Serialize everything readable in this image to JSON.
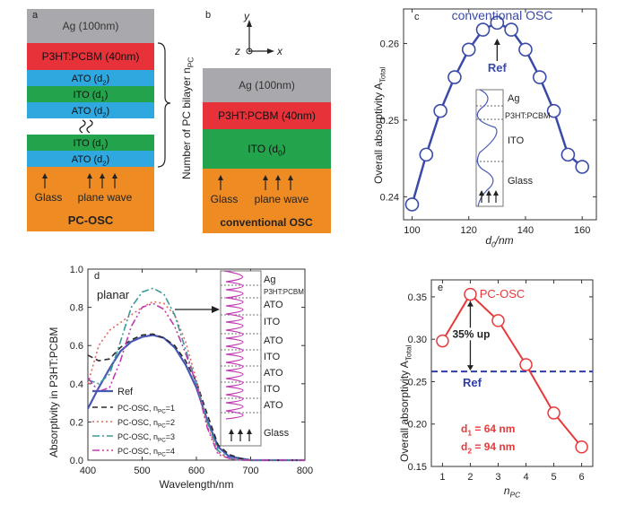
{
  "panels": {
    "a": {
      "letter": "a",
      "layers": [
        "Ag (100nm)",
        "P3HT:PCBM (40nm)",
        "ATO (d",
        "ITO (d",
        "ATO (d",
        "ITO (d",
        "ATO (d"
      ],
      "layer_subs": [
        "",
        "",
        "2",
        "1",
        "2",
        "1",
        "2"
      ],
      "layer_colors": [
        "#a9a9ad",
        "#e8323a",
        "#2ea8df",
        "#23a34b",
        "#2ea8df",
        "#23a34b",
        "#2ea8df",
        "#ee8b22"
      ],
      "glass": "Glass",
      "wave": "plane wave",
      "device": "PC-OSC",
      "brace_label": "Number of PC bilayer n",
      "brace_sub": "PC"
    },
    "b": {
      "letter": "b",
      "axis_y": "y",
      "axis_z": "z",
      "axis_x": "x",
      "layers": [
        "Ag (100nm)",
        "P3HT:PCBM (40nm)",
        "ITO (d"
      ],
      "layer_subs": [
        "",
        "",
        "0"
      ],
      "glass": "Glass",
      "wave": "plane wave",
      "device": "conventional OSC"
    }
  },
  "chart_data": [
    {
      "panel": "c",
      "type": "line",
      "title": "conventional OSC",
      "xlabel": "d",
      "xlabel_sub": "0",
      "xlabel_unit": "/nm",
      "ylabel": "Overall absorptivity A",
      "ylabel_sub": "Total",
      "xlim": [
        97,
        165
      ],
      "ylim": [
        0.237,
        0.2645
      ],
      "xticks": [
        100,
        120,
        140,
        160
      ],
      "xtick_labels": [
        "100",
        "120",
        "140",
        "160"
      ],
      "yticks": [
        0.24,
        0.25,
        0.26
      ],
      "ytick_labels": [
        "0.24",
        "0.25",
        "0.26"
      ],
      "x": [
        100,
        105,
        110,
        115,
        120,
        125,
        130,
        135,
        140,
        145,
        150,
        155,
        160
      ],
      "y": [
        0.239,
        0.2455,
        0.2512,
        0.2556,
        0.2592,
        0.2618,
        0.2627,
        0.2618,
        0.2592,
        0.2556,
        0.2512,
        0.2455,
        0.2439
      ],
      "color": "#3a4aa8",
      "annotation": "Ref",
      "annotation_x": 130,
      "inset_labels": [
        "Ag",
        "P3HT:PCBM",
        "ITO",
        "Glass"
      ]
    },
    {
      "panel": "d",
      "type": "line",
      "xlabel": "Wavelength/nm",
      "ylabel": "Absorptivity in P3HT:PCBM",
      "xlim": [
        400,
        800
      ],
      "ylim": [
        0.0,
        1.0
      ],
      "xticks": [
        400,
        500,
        600,
        700,
        800
      ],
      "xtick_labels": [
        "400",
        "500",
        "600",
        "700",
        "800"
      ],
      "yticks": [
        0.0,
        0.2,
        0.4,
        0.6,
        0.8,
        1.0
      ],
      "ytick_labels": [
        "0.0",
        "0.2",
        "0.4",
        "0.6",
        "0.8",
        "1.0"
      ],
      "x": [
        400,
        420,
        440,
        460,
        480,
        500,
        520,
        540,
        560,
        580,
        600,
        620,
        640,
        660,
        680,
        700,
        750,
        800
      ],
      "series": [
        {
          "name": "Ref",
          "color": "#4657b4",
          "dash": "",
          "values": [
            0.27,
            0.38,
            0.48,
            0.57,
            0.62,
            0.645,
            0.655,
            0.64,
            0.59,
            0.5,
            0.38,
            0.21,
            0.07,
            0.02,
            0.01,
            0.0,
            0.0,
            0.0
          ]
        },
        {
          "name": "PC-OSC, n",
          "sub": "PC",
          "suffix": "=1",
          "color": "#2b2b2b",
          "dash": "6,4",
          "values": [
            0.55,
            0.52,
            0.53,
            0.59,
            0.63,
            0.655,
            0.66,
            0.64,
            0.6,
            0.52,
            0.41,
            0.24,
            0.08,
            0.03,
            0.01,
            0.0,
            0.0,
            0.0
          ]
        },
        {
          "name": "PC-OSC, n",
          "sub": "PC",
          "suffix": "=2",
          "color": "#e06a5a",
          "dash": "2,3",
          "values": [
            0.4,
            0.6,
            0.68,
            0.72,
            0.76,
            0.8,
            0.83,
            0.82,
            0.76,
            0.62,
            0.42,
            0.18,
            0.04,
            0.01,
            0.0,
            0.0,
            0.0,
            0.0
          ]
        },
        {
          "name": "PC-OSC, n",
          "sub": "PC",
          "suffix": "=3",
          "color": "#3a9a9a",
          "dash": "8,3,2,3",
          "values": [
            0.42,
            0.4,
            0.45,
            0.62,
            0.8,
            0.88,
            0.9,
            0.87,
            0.76,
            0.58,
            0.4,
            0.2,
            0.05,
            0.01,
            0.0,
            0.0,
            0.0,
            0.0
          ]
        },
        {
          "name": "PC-OSC, n",
          "sub": "PC",
          "suffix": "=4",
          "color": "#c03ab4",
          "dash": "8,3,2,3,2,3",
          "values": [
            0.43,
            0.36,
            0.38,
            0.52,
            0.7,
            0.8,
            0.82,
            0.79,
            0.7,
            0.56,
            0.4,
            0.17,
            0.03,
            0.01,
            0.0,
            0.0,
            0.0,
            0.0
          ]
        }
      ],
      "annotation": "planar",
      "inset_labels": [
        "Ag",
        "P3HT:PCBM",
        "ATO",
        "ITO",
        "ATO",
        "ITO",
        "ATO",
        "ITO",
        "ATO",
        "Glass"
      ]
    },
    {
      "panel": "e",
      "type": "line",
      "title": "PC-OSC",
      "xlabel": "n",
      "xlabel_sub": "PC",
      "ylabel": "Overall absorptivity A",
      "ylabel_sub": "Total",
      "xlim": [
        0.6,
        6.4
      ],
      "ylim": [
        0.15,
        0.37
      ],
      "xticks": [
        1,
        2,
        3,
        4,
        5,
        6
      ],
      "xtick_labels": [
        "1",
        "2",
        "3",
        "4",
        "5",
        "6"
      ],
      "yticks": [
        0.15,
        0.2,
        0.25,
        0.3,
        0.35
      ],
      "ytick_labels": [
        "0.15",
        "0.20",
        "0.25",
        "0.30",
        "0.35"
      ],
      "x": [
        1,
        2,
        3,
        4,
        5,
        6
      ],
      "y": [
        0.298,
        0.353,
        0.322,
        0.27,
        0.213,
        0.173
      ],
      "color": "#e8393a",
      "ref_value": 0.262,
      "ref_label": "Ref",
      "ref_color": "#2e3ea8",
      "annotation": "35% up",
      "params": [
        "d",
        "d"
      ],
      "param_subs": [
        "1",
        "2"
      ],
      "param_values": [
        " = 64 nm",
        " = 94 nm"
      ]
    }
  ]
}
